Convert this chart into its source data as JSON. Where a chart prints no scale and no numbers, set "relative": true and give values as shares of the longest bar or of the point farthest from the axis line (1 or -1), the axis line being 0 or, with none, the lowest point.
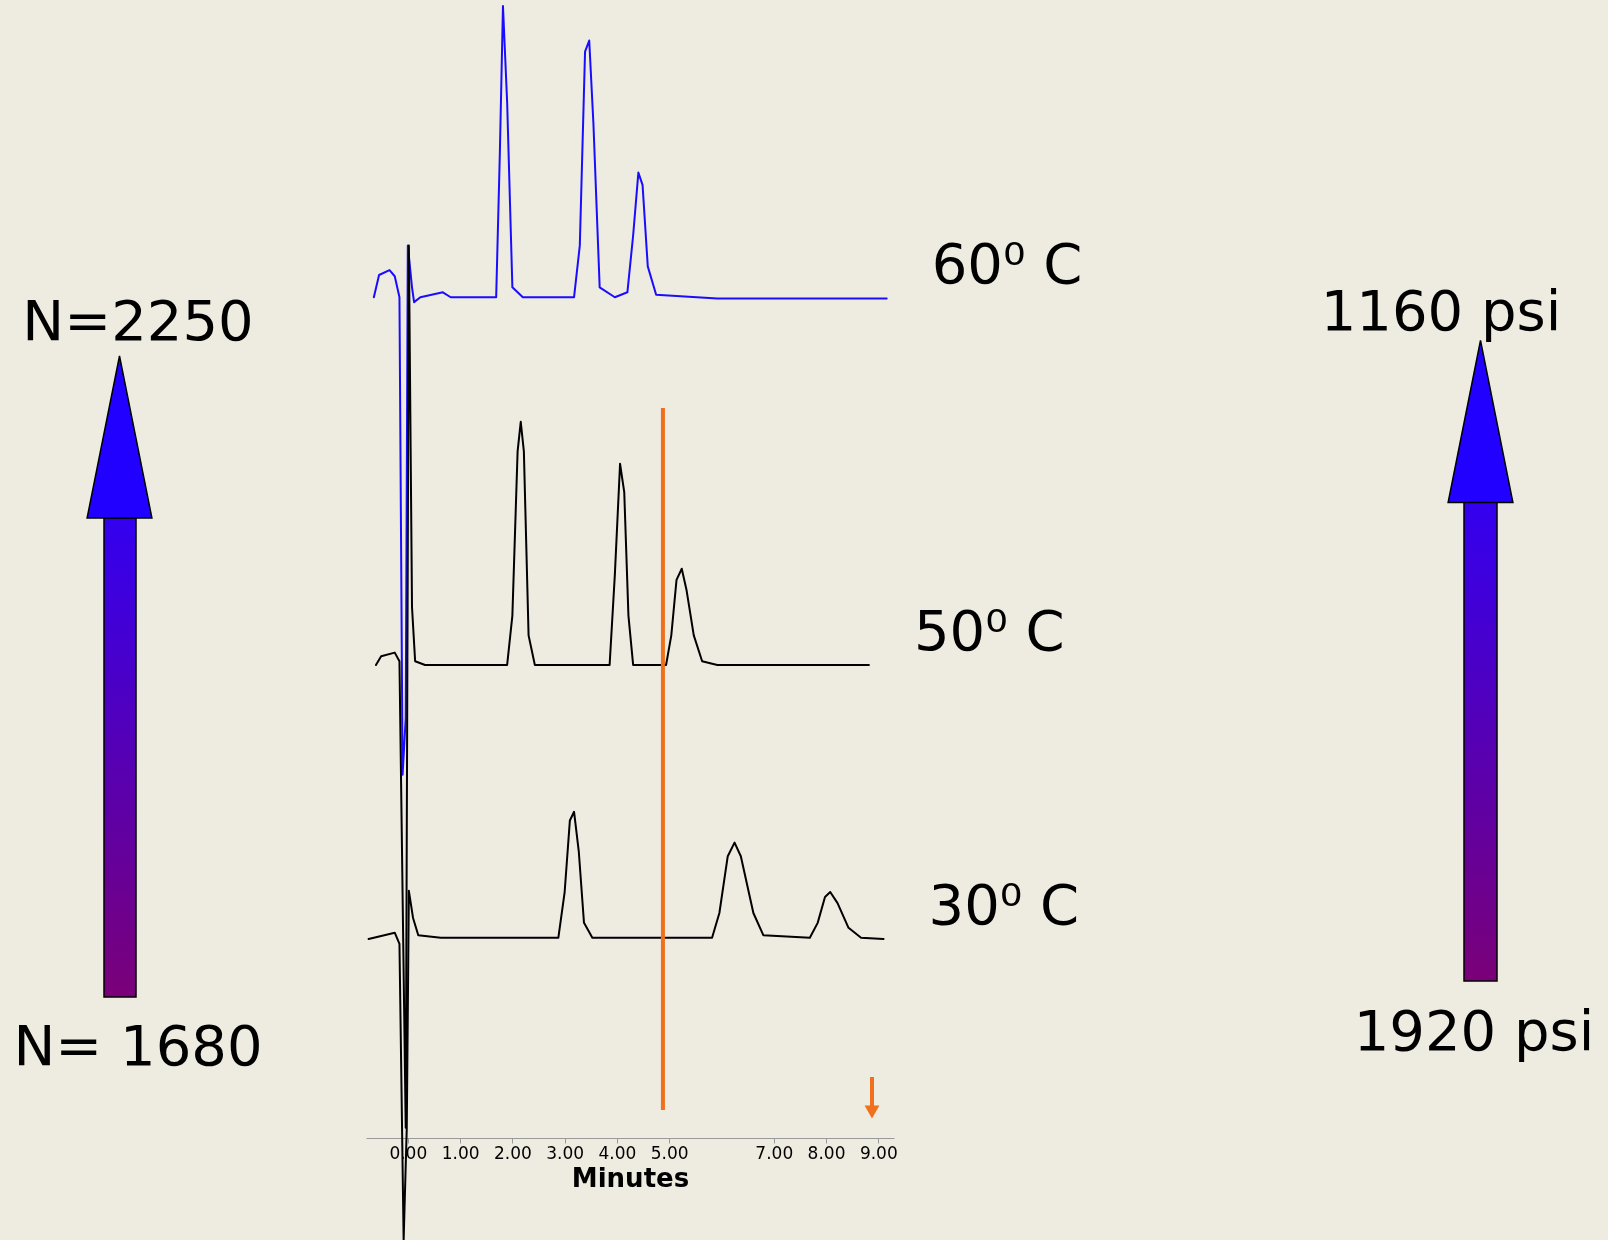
{
  "chart_data": {
    "type": "line",
    "relative": true,
    "xlabel": "Minutes",
    "xlim": [
      -0.8,
      9.3
    ],
    "xticks": [
      {
        "value": 0,
        "label": "0.00"
      },
      {
        "value": 1,
        "label": "1.00"
      },
      {
        "value": 2,
        "label": "2.00"
      },
      {
        "value": 3,
        "label": "3.00"
      },
      {
        "value": 4,
        "label": "4.00"
      },
      {
        "value": 5,
        "label": "5.00"
      },
      {
        "value": 7,
        "label": "7.00"
      },
      {
        "value": 8,
        "label": "8.00"
      },
      {
        "value": 9,
        "label": "9.00"
      }
    ],
    "tick_labels": "x",
    "series": [
      {
        "name": "60⁰ C",
        "color": "#1a0dff",
        "x": [
          -0.65,
          -0.55,
          -0.35,
          -0.25,
          -0.16,
          -0.1,
          -0.04,
          0.0,
          0.08,
          0.12,
          0.24,
          0.67,
          0.82,
          1.69,
          1.76,
          1.82,
          1.9,
          2.0,
          2.2,
          3.18,
          3.29,
          3.39,
          3.47,
          3.55,
          3.67,
          3.96,
          4.2,
          4.31,
          4.41,
          4.49,
          4.59,
          4.75,
          5.92,
          9.16
        ],
        "values": [
          0.764,
          0.782,
          0.786,
          0.781,
          0.764,
          0.377,
          0.423,
          0.806,
          0.772,
          0.76,
          0.764,
          0.768,
          0.764,
          0.764,
          0.88,
          1.0,
          0.922,
          0.772,
          0.764,
          0.764,
          0.806,
          0.963,
          0.972,
          0.905,
          0.772,
          0.764,
          0.768,
          0.814,
          0.865,
          0.855,
          0.789,
          0.766,
          0.763,
          0.763
        ]
      },
      {
        "name": "50⁰ C",
        "color": "#000000",
        "x": [
          -0.61,
          -0.51,
          -0.25,
          -0.16,
          -0.04,
          0.02,
          0.08,
          0.14,
          0.33,
          1.9,
          2.0,
          2.1,
          2.16,
          2.22,
          2.31,
          2.43,
          3.86,
          3.96,
          4.06,
          4.14,
          4.22,
          4.31,
          4.94,
          5.04,
          5.14,
          5.24,
          5.33,
          5.47,
          5.63,
          5.92,
          8.82
        ],
        "values": [
          0.466,
          0.473,
          0.476,
          0.469,
          0.091,
          0.806,
          0.513,
          0.469,
          0.466,
          0.466,
          0.506,
          0.639,
          0.663,
          0.639,
          0.49,
          0.466,
          0.466,
          0.539,
          0.629,
          0.606,
          0.506,
          0.466,
          0.466,
          0.49,
          0.535,
          0.544,
          0.527,
          0.49,
          0.469,
          0.466,
          0.466
        ]
      },
      {
        "name": "30⁰ C",
        "color": "#000000",
        "x": [
          -0.75,
          -0.45,
          -0.25,
          -0.16,
          -0.08,
          -0.02,
          0.02,
          0.1,
          0.2,
          0.63,
          2.88,
          3.0,
          3.1,
          3.18,
          3.27,
          3.37,
          3.53,
          5.82,
          5.96,
          6.12,
          6.25,
          6.37,
          6.61,
          6.8,
          7.69,
          7.84,
          7.98,
          8.08,
          8.22,
          8.43,
          8.67,
          9.1
        ],
        "values": [
          0.244,
          0.247,
          0.249,
          0.24,
          0.0,
          0.091,
          0.283,
          0.261,
          0.247,
          0.245,
          0.245,
          0.282,
          0.34,
          0.347,
          0.315,
          0.257,
          0.245,
          0.245,
          0.265,
          0.311,
          0.322,
          0.311,
          0.265,
          0.247,
          0.245,
          0.257,
          0.278,
          0.282,
          0.273,
          0.253,
          0.245,
          0.244
        ]
      }
    ],
    "ref_lines": [
      {
        "axis": "x",
        "value": 4.88,
        "color": "#f0701e"
      }
    ],
    "annotations": [
      "N=2250",
      "N= 1680",
      "1160 psi",
      "1920 psi"
    ]
  }
}
